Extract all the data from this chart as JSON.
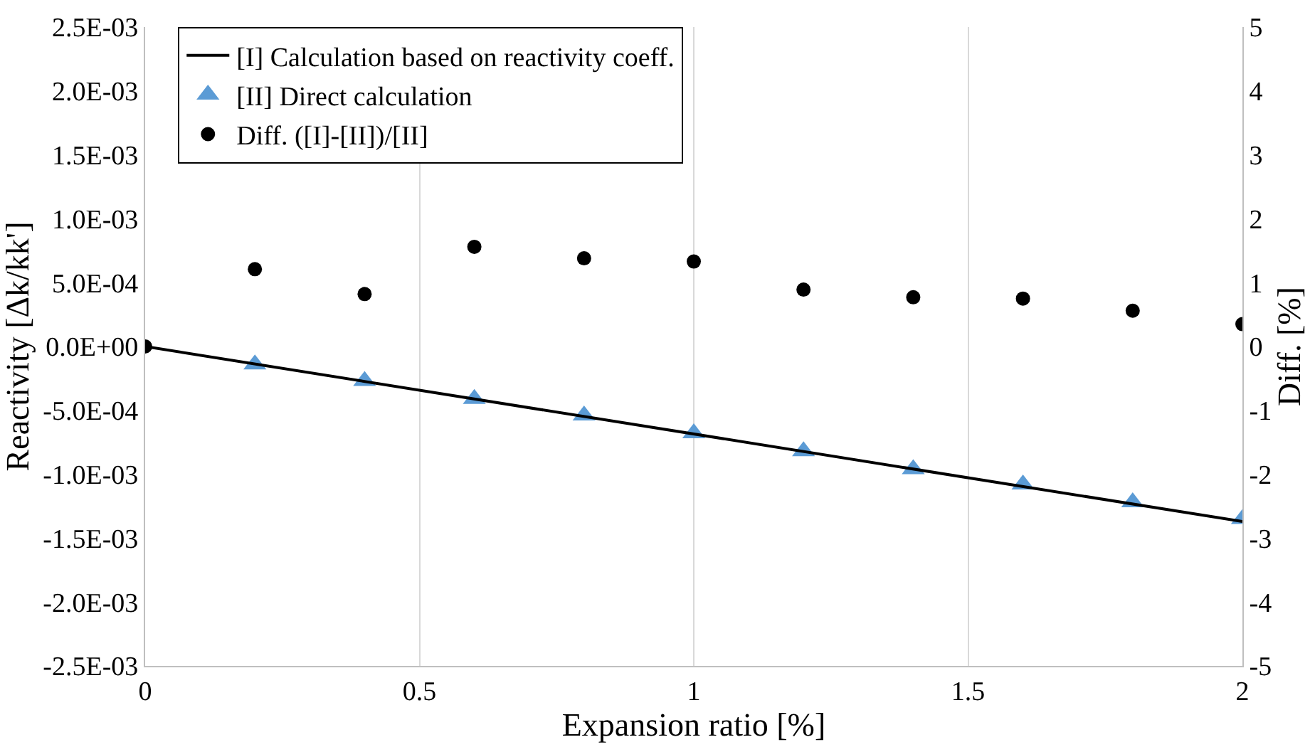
{
  "chart_data": {
    "type": "line",
    "xlabel": "Expansion ratio [%]",
    "ylabel": "Reactivity [Δk/kk']",
    "y2label": "Diff. [%]",
    "xlim": [
      0,
      2
    ],
    "xticks": [
      0,
      0.5,
      1,
      1.5,
      2
    ],
    "ylim": [
      -0.0025,
      0.0025
    ],
    "yticks": [
      {
        "value": -0.0025,
        "label": "-2.5E-03"
      },
      {
        "value": -0.002,
        "label": "-2.0E-03"
      },
      {
        "value": -0.0015,
        "label": "-1.5E-03"
      },
      {
        "value": -0.001,
        "label": "-1.0E-03"
      },
      {
        "value": -0.0005,
        "label": "-5.0E-04"
      },
      {
        "value": 0,
        "label": "0.0E+00"
      },
      {
        "value": 0.0005,
        "label": "5.0E-04"
      },
      {
        "value": 0.001,
        "label": "1.0E-03"
      },
      {
        "value": 0.0015,
        "label": "1.5E-03"
      },
      {
        "value": 0.002,
        "label": "2.0E-03"
      },
      {
        "value": 0.0025,
        "label": "2.5E-03"
      }
    ],
    "y2lim": [
      -5,
      5
    ],
    "y2ticks": [
      -5,
      -4,
      -3,
      -2,
      -1,
      0,
      1,
      2,
      3,
      4,
      5
    ],
    "grid": "x",
    "legend": "top left",
    "series": [
      {
        "name": "[I] Calculation based on reactivity coeff.",
        "color": "#000000",
        "marker": "none",
        "line_style": "solid",
        "x": [
          0,
          2
        ],
        "values": [
          0,
          -0.00137
        ]
      },
      {
        "name": "[II] Direct calculation",
        "type": "scatter",
        "color": "#5b9bd5",
        "marker": "triangle",
        "x": [
          0.2,
          0.4,
          0.6,
          0.8,
          1.0,
          1.2,
          1.4,
          1.6,
          1.8,
          2.0
        ],
        "values": [
          -0.00014,
          -0.00027,
          -0.00041,
          -0.00054,
          -0.00068,
          -0.00082,
          -0.00096,
          -0.00108,
          -0.00122,
          -0.00135
        ]
      },
      {
        "name": "Diff. ([I]-[II])/[II]",
        "type": "scatter",
        "axis": "y2",
        "color": "#000000",
        "marker": "circle",
        "x": [
          0,
          0.2,
          0.4,
          0.6,
          0.8,
          1.0,
          1.2,
          1.4,
          1.6,
          1.8,
          2.0
        ],
        "values": [
          0,
          1.21,
          0.82,
          1.56,
          1.38,
          1.33,
          0.89,
          0.77,
          0.75,
          0.56,
          0.35
        ]
      }
    ]
  }
}
